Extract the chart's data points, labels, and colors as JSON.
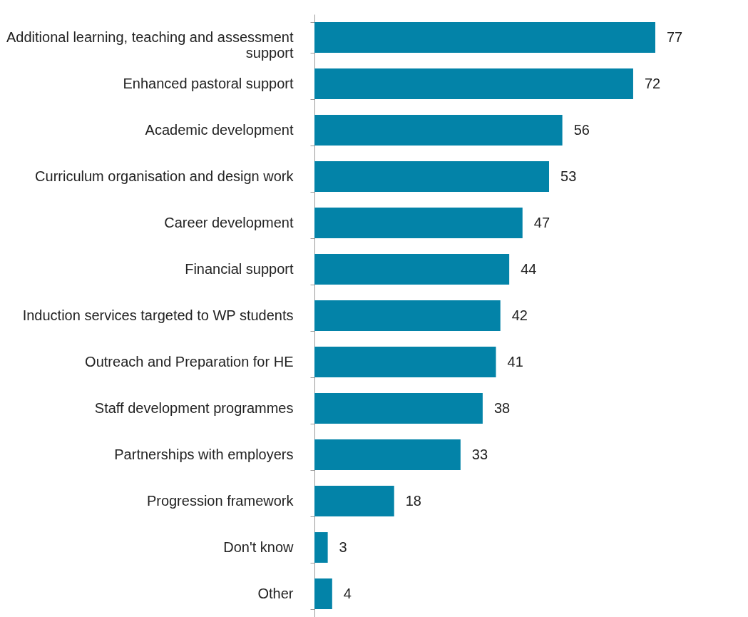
{
  "chart_data": {
    "type": "bar",
    "orientation": "horizontal",
    "data_labels": true,
    "categories": [
      "Additional learning, teaching and assessment support",
      "Enhanced pastoral support",
      "Academic development",
      "Curriculum organisation and design work",
      "Career development",
      "Financial support",
      "Induction services targeted to WP students",
      "Outreach and Preparation for HE",
      "Staff development programmes",
      "Partnerships with employers",
      "Progression framework",
      "Don't know",
      "Other"
    ],
    "values": [
      77,
      72,
      56,
      53,
      47,
      44,
      42,
      41,
      38,
      33,
      18,
      3,
      4
    ],
    "color": "#0383a8"
  }
}
